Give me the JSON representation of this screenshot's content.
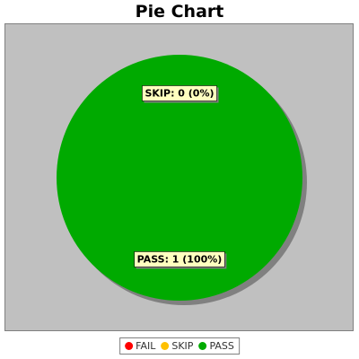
{
  "chart_data": {
    "type": "pie",
    "title": "Pie Chart",
    "slices": [
      {
        "name": "FAIL",
        "value": 0,
        "percent": 0,
        "color": "#ff0000",
        "label": ""
      },
      {
        "name": "SKIP",
        "value": 0,
        "percent": 0,
        "color": "#ffc000",
        "label": "SKIP: 0 (0%)"
      },
      {
        "name": "PASS",
        "value": 1,
        "percent": 100,
        "color": "#00aa00",
        "label": "PASS: 1 (100%)"
      }
    ],
    "legend": {
      "placement": "bottom",
      "items": [
        {
          "label": "FAIL",
          "color": "#ff0000"
        },
        {
          "label": "SKIP",
          "color": "#ffc000"
        },
        {
          "label": "PASS",
          "color": "#00aa00"
        }
      ]
    },
    "plot_background": "#c0c0c0"
  }
}
